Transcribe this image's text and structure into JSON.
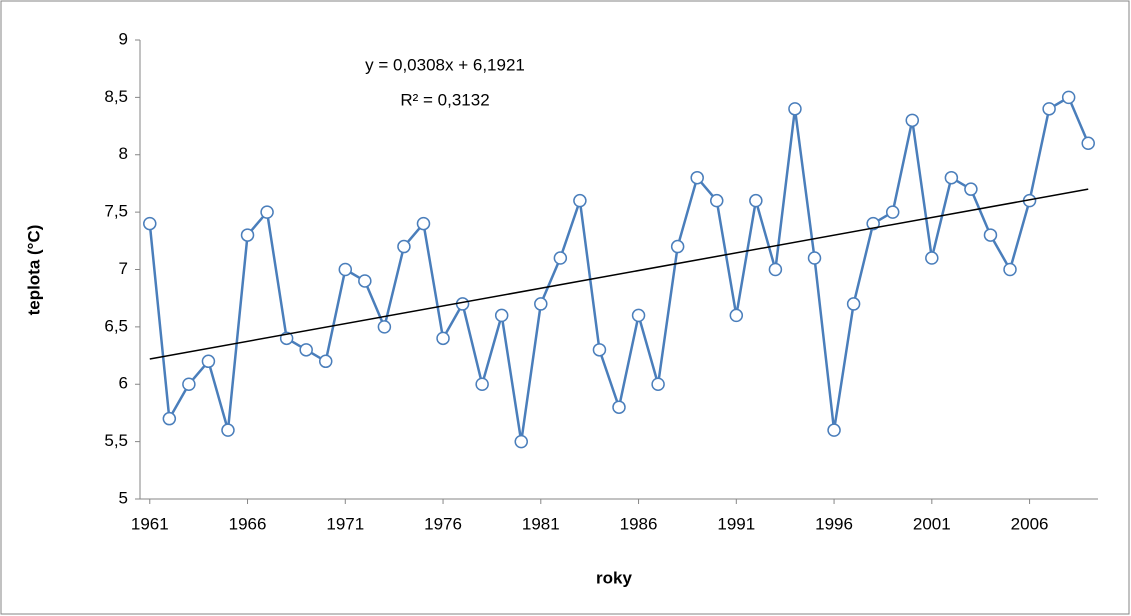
{
  "chart_data": {
    "type": "line",
    "x_label": "roky",
    "y_label": "teplota (°C)",
    "annotations": [
      "y = 0,0308x + 6,1921",
      "R² = 0,3132"
    ],
    "x": [
      1961,
      1962,
      1963,
      1964,
      1965,
      1966,
      1967,
      1968,
      1969,
      1970,
      1971,
      1972,
      1973,
      1974,
      1975,
      1976,
      1977,
      1978,
      1979,
      1980,
      1981,
      1982,
      1983,
      1984,
      1985,
      1986,
      1987,
      1988,
      1989,
      1990,
      1991,
      1992,
      1993,
      1994,
      1995,
      1996,
      1997,
      1998,
      1999,
      2000,
      2001,
      2002,
      2003,
      2004,
      2005,
      2006,
      2007,
      2008,
      2009
    ],
    "series": [
      {
        "color": "#4a7ebb",
        "values": [
          7.4,
          5.7,
          6.0,
          6.2,
          5.6,
          7.3,
          7.5,
          6.4,
          6.3,
          6.2,
          7.0,
          6.9,
          6.5,
          7.2,
          7.4,
          6.4,
          6.7,
          6.0,
          6.6,
          5.5,
          6.7,
          7.1,
          7.6,
          6.3,
          5.8,
          6.6,
          6.0,
          7.2,
          7.8,
          7.6,
          6.6,
          7.6,
          7.0,
          8.4,
          7.1,
          5.6,
          6.7,
          7.4,
          7.5,
          8.3,
          7.1,
          7.8,
          7.7,
          7.3,
          7.0,
          7.6,
          8.4,
          8.5,
          8.1
        ]
      }
    ],
    "trendline": {
      "color": "#000000",
      "x": [
        1961,
        2009
      ],
      "values": [
        6.22,
        7.7
      ]
    },
    "xlim": [
      1960.5,
      2009.5
    ],
    "xticks": [
      1961,
      1966,
      1971,
      1976,
      1981,
      1986,
      1991,
      1996,
      2001,
      2006
    ],
    "ylim": [
      5,
      9
    ],
    "yticks": [
      5,
      {
        "value": 5.5,
        "label": "5,5"
      },
      6,
      {
        "value": 6.5,
        "label": "6,5"
      },
      7,
      {
        "value": 7.5,
        "label": "7,5"
      },
      8,
      {
        "value": 8.5,
        "label": "8,5"
      },
      9
    ]
  }
}
